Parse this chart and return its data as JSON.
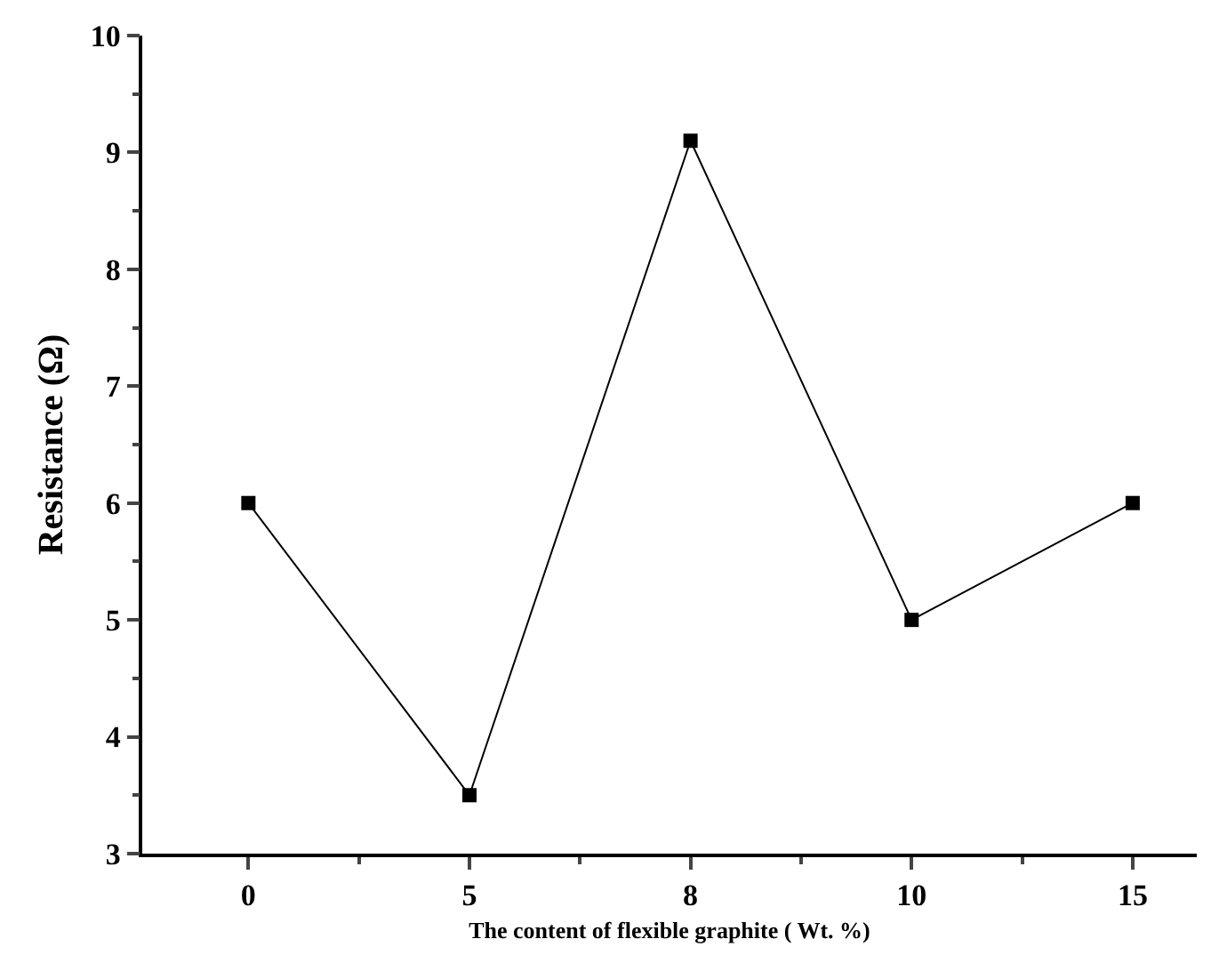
{
  "chart_data": {
    "type": "line",
    "xlabel": "The content of flexible graphite ( Wt. %)",
    "ylabel": "Resistance (Ω)",
    "categories": [
      "0",
      "5",
      "8",
      "10",
      "15"
    ],
    "series": [
      {
        "color": "#000000",
        "values": [
          6,
          3.5,
          9.1,
          5,
          6
        ]
      }
    ],
    "ylim": [
      3,
      10
    ],
    "yticks": [
      3,
      4,
      5,
      6,
      7,
      8,
      9,
      10
    ],
    "grid": false,
    "legend": false,
    "marker": "square",
    "line_style": "solid"
  }
}
